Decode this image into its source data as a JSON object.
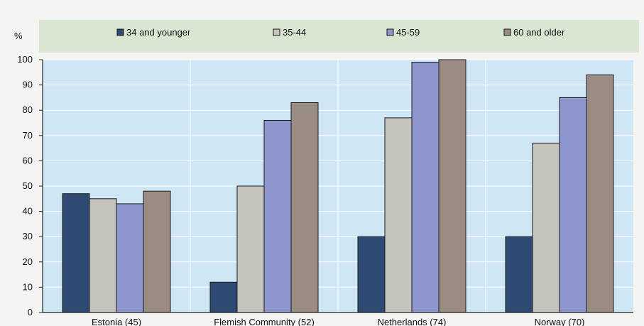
{
  "chart_data": {
    "type": "bar",
    "ylabel": "%",
    "ylim": [
      0,
      100
    ],
    "yticks": [
      0,
      10,
      20,
      30,
      40,
      50,
      60,
      70,
      80,
      90,
      100
    ],
    "grid": true,
    "legend_position": "top",
    "categories": [
      "Estonia (45)",
      "Flemish Community (52)",
      "Netherlands (74)",
      "Norway (70)"
    ],
    "series": [
      {
        "name": "34 and younger",
        "color": "#2f4a72",
        "values": [
          47,
          12,
          30,
          30
        ]
      },
      {
        "name": "35-44",
        "color": "#c4c4bc",
        "values": [
          45,
          50,
          77,
          67
        ]
      },
      {
        "name": "45-59",
        "color": "#8d96cf",
        "values": [
          43,
          76,
          99,
          85
        ]
      },
      {
        "name": "60 and older",
        "color": "#9a8c82",
        "values": [
          48,
          83,
          100,
          94
        ]
      }
    ],
    "colors": {
      "plot_background": "#cfe6f5",
      "legend_background": "#d8e6d2"
    }
  }
}
